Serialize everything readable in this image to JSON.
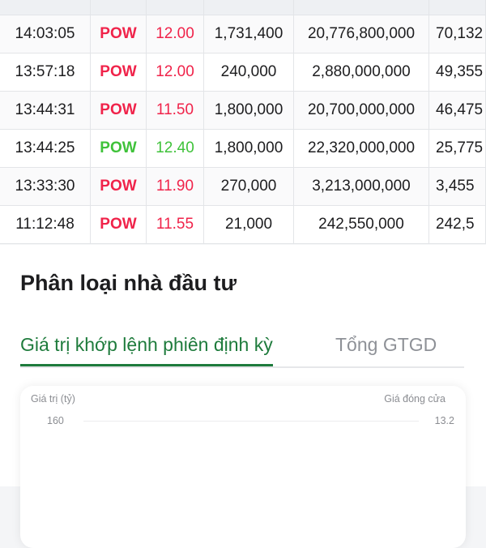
{
  "table": {
    "rows": [
      {
        "time": "14:03:05",
        "symbol": "POW",
        "price": "12.00",
        "color": "red",
        "volume": "1,731,400",
        "value": "20,776,800,000",
        "total": "70,132"
      },
      {
        "time": "13:57:18",
        "symbol": "POW",
        "price": "12.00",
        "color": "red",
        "volume": "240,000",
        "value": "2,880,000,000",
        "total": "49,355"
      },
      {
        "time": "13:44:31",
        "symbol": "POW",
        "price": "11.50",
        "color": "red",
        "volume": "1,800,000",
        "value": "20,700,000,000",
        "total": "46,475"
      },
      {
        "time": "13:44:25",
        "symbol": "POW",
        "price": "12.40",
        "color": "green",
        "volume": "1,800,000",
        "value": "22,320,000,000",
        "total": "25,775"
      },
      {
        "time": "13:33:30",
        "symbol": "POW",
        "price": "11.90",
        "color": "red",
        "volume": "270,000",
        "value": "3,213,000,000",
        "total": "3,455"
      },
      {
        "time": "11:12:48",
        "symbol": "POW",
        "price": "11.55",
        "color": "red",
        "volume": "21,000",
        "value": "242,550,000",
        "total": "242,5"
      }
    ]
  },
  "section": {
    "title": "Phân loại nhà đầu tư",
    "tabs": [
      {
        "label": "Giá trị khớp lệnh phiên định kỳ",
        "active": true
      },
      {
        "label": "Tổng GTGD",
        "active": false
      }
    ]
  },
  "chart": {
    "left_axis_label": "Giá trị (tỷ)",
    "right_axis_label": "Giá đóng cửa",
    "left_ticks": [
      "160"
    ],
    "right_ticks": [
      "13.2"
    ]
  },
  "colors": {
    "up": "#3fc23a",
    "down": "#f0234a",
    "accent": "#1e7b3c"
  }
}
